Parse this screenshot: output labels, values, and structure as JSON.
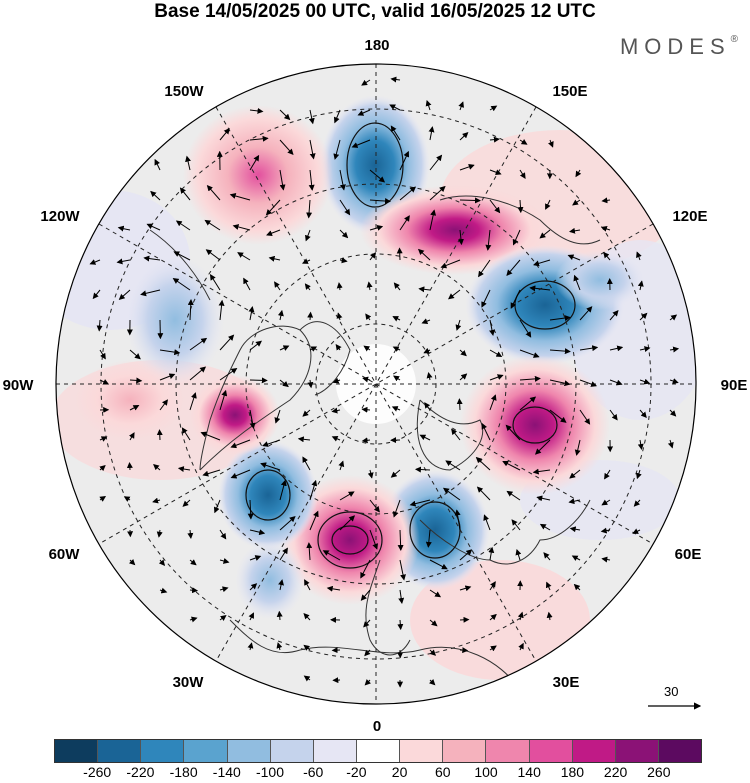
{
  "header": {
    "title": "Base 14/05/2025 00 UTC, valid 16/05/2025 12 UTC",
    "brand": "MODES",
    "brand_mark": "®"
  },
  "map": {
    "projection": "north-polar-stereographic",
    "longitude_labels": [
      "180",
      "150E",
      "120E",
      "90E",
      "60E",
      "30E",
      "0",
      "30W",
      "60W",
      "90W",
      "120W",
      "150W"
    ],
    "graticule": "dashed",
    "anomaly_centers": [
      {
        "sign": "negative",
        "region": "north of Bering Strait / 180",
        "level": -220
      },
      {
        "sign": "positive",
        "region": "Alaska / Gulf of Alaska 150W",
        "level": 100
      },
      {
        "sign": "positive",
        "region": "East Siberia 130E-150E",
        "level": 180
      },
      {
        "sign": "negative",
        "region": "Central Siberia 100E",
        "level": -220
      },
      {
        "sign": "positive",
        "region": "Western Siberia 80E",
        "level": 180
      },
      {
        "sign": "negative",
        "region": "Scandinavia / Barents 20E",
        "level": -220
      },
      {
        "sign": "positive",
        "region": "North Atlantic 20W",
        "level": 260
      },
      {
        "sign": "negative",
        "region": "Newfoundland / West Atlantic 50W",
        "level": -220
      },
      {
        "sign": "positive",
        "region": "Eastern Canada 80W",
        "level": 140
      },
      {
        "sign": "negative",
        "region": "Hudson Bay 100W",
        "level": -140
      }
    ]
  },
  "vector_reference": {
    "label": "30"
  },
  "colorbar": {
    "colors": [
      "#0d3c5e",
      "#1a6496",
      "#2f86bb",
      "#5aa3cf",
      "#91bde0",
      "#c5d3ec",
      "#e6e6f4",
      "#ffffff",
      "#fbd9da",
      "#f5b2bd",
      "#ef86ad",
      "#e24f9e",
      "#c01a86",
      "#8b1276",
      "#5c0a60"
    ],
    "tick_labels": [
      "-260",
      "-220",
      "-180",
      "-140",
      "-100",
      "-60",
      "-20",
      "20",
      "60",
      "100",
      "140",
      "180",
      "220",
      "260"
    ]
  }
}
